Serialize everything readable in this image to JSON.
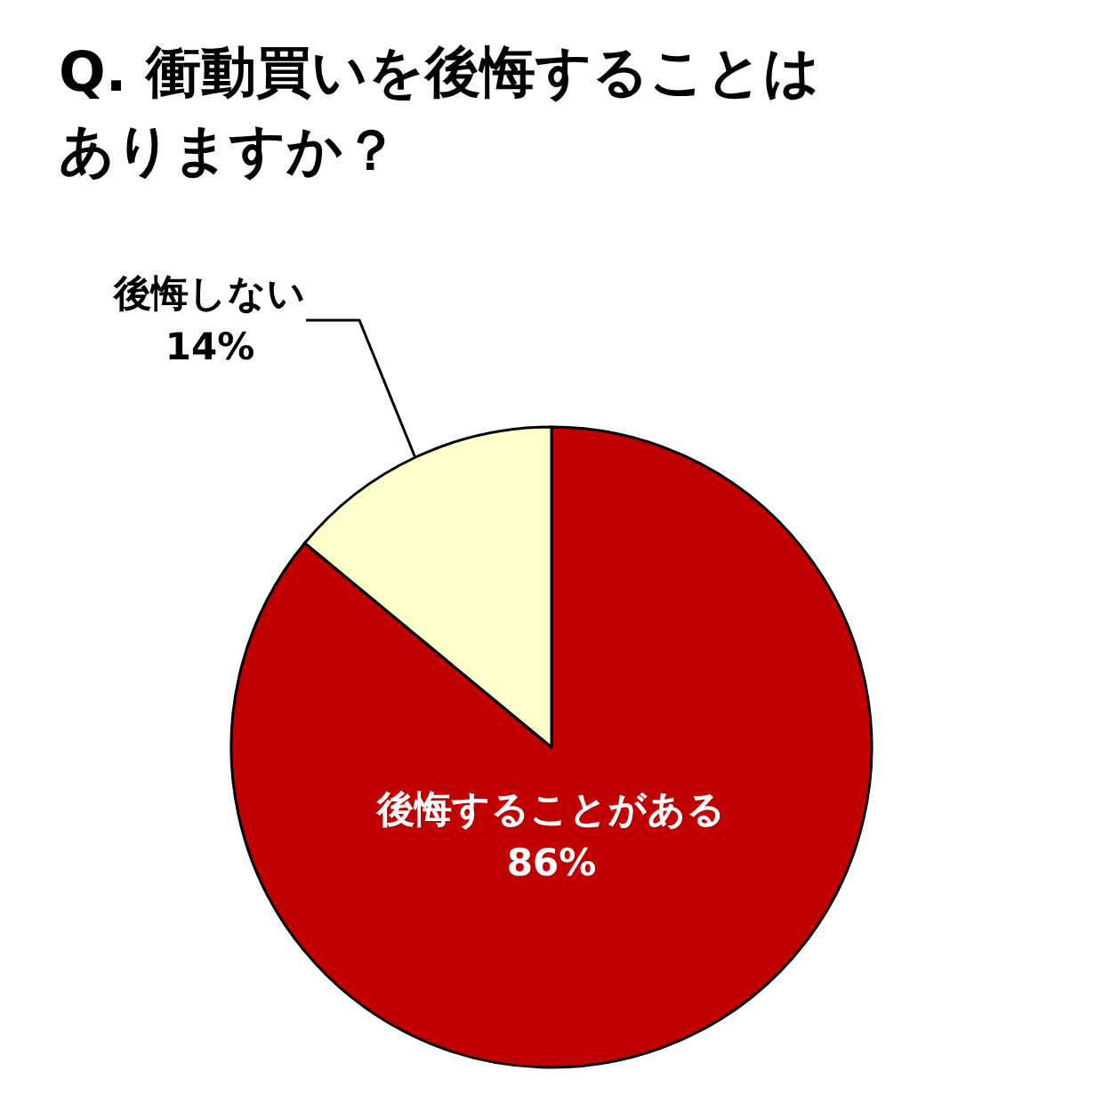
{
  "chart_data": {
    "type": "pie",
    "title": "Q. 衝動買いを後悔することはありますか？",
    "categories": [
      "後悔することがある",
      "後悔しない"
    ],
    "values": [
      86,
      14
    ],
    "value_labels": [
      "86%",
      "14%"
    ],
    "colors": [
      "#c00000",
      "#ffffcc"
    ]
  }
}
